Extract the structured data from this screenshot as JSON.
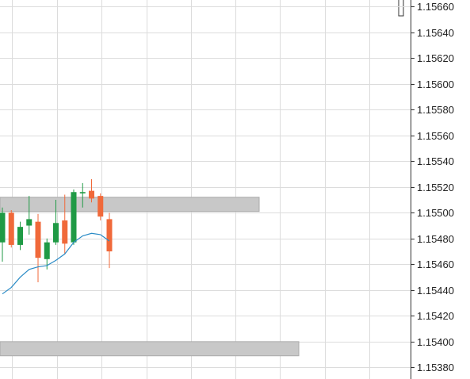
{
  "chart_data": {
    "type": "candlestick",
    "categories": [
      null,
      null,
      null,
      null,
      null,
      null,
      null,
      null,
      null,
      null,
      null,
      null,
      null
    ],
    "series": [
      {
        "up_color": "#1f9a45",
        "down_color": "#f0693a",
        "open": [
          1.15477,
          1.155,
          1.15475,
          1.1549,
          1.15493,
          1.15464,
          1.15477,
          1.15494,
          1.15477,
          1.15515,
          1.15517,
          1.15513,
          1.15495
        ],
        "high": [
          1.15504,
          1.15502,
          1.15493,
          1.15513,
          1.15499,
          1.1548,
          1.1551,
          1.15514,
          1.15518,
          1.15523,
          1.15526,
          1.15515,
          1.155
        ],
        "low": [
          1.15462,
          1.15473,
          1.15471,
          1.15483,
          1.15446,
          1.15456,
          1.15475,
          1.15468,
          1.15475,
          1.15504,
          1.15508,
          1.15494,
          1.15457
        ],
        "close": [
          1.155,
          1.15475,
          1.15489,
          1.15495,
          1.15465,
          1.15477,
          1.15492,
          1.15476,
          1.15516,
          1.15516,
          1.15511,
          1.15497,
          1.1547
        ]
      }
    ],
    "moving_average": {
      "color": "#2a8bc6",
      "values": [
        1.15437,
        1.15442,
        1.1545,
        1.15456,
        1.15458,
        1.15459,
        1.15463,
        1.15468,
        1.15477,
        1.15482,
        1.15484,
        1.15483,
        1.15478
      ]
    },
    "zones": [
      {
        "low": 1.15501,
        "high": 1.15512,
        "color": "#c8c8c8"
      },
      {
        "low": 1.15389,
        "high": 1.154,
        "color": "#c8c8c8"
      }
    ],
    "ylim": [
      1.15371,
      1.15665
    ],
    "yticks": [
      {
        "value": 1.1538,
        "label": "1.15380"
      },
      {
        "value": 1.154,
        "label": "1.15400"
      },
      {
        "value": 1.1542,
        "label": "1.15420"
      },
      {
        "value": 1.1544,
        "label": "1.15440"
      },
      {
        "value": 1.1546,
        "label": "1.15460"
      },
      {
        "value": 1.1548,
        "label": "1.15480"
      },
      {
        "value": 1.155,
        "label": "1.15500"
      },
      {
        "value": 1.1552,
        "label": "1.15520"
      },
      {
        "value": 1.1554,
        "label": "1.15540"
      },
      {
        "value": 1.1556,
        "label": "1.15560"
      },
      {
        "value": 1.1558,
        "label": "1.15580"
      },
      {
        "value": 1.156,
        "label": "1.15600"
      },
      {
        "value": 1.1562,
        "label": "1.15620"
      },
      {
        "value": 1.1564,
        "label": "1.15640"
      },
      {
        "value": 1.1566,
        "label": "1.15660"
      }
    ],
    "grid": true
  }
}
